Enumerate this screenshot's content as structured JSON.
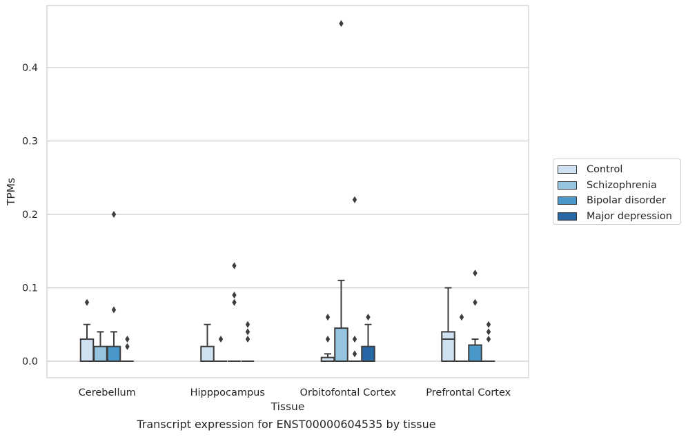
{
  "chart_data": {
    "type": "box",
    "xlabel": "Tissue",
    "ylabel": "TPMs",
    "ylim": [
      -0.023,
      0.485
    ],
    "yticks": [
      0.0,
      0.1,
      0.2,
      0.3,
      0.4
    ],
    "ytick_labels": [
      "0.0",
      "0.1",
      "0.2",
      "0.3",
      "0.4"
    ],
    "categories": [
      "Cerebellum",
      "Hipppocampus",
      "Orbitofontal Cortex",
      "Prefrontal Cortex"
    ],
    "grid": "horizontal",
    "legend_position": "right",
    "series": [
      {
        "name": "Control",
        "color": "#d0e1f2",
        "boxes": [
          {
            "whislo": 0.0,
            "q1": 0.0,
            "med": 0.0,
            "q3": 0.03,
            "whishi": 0.05,
            "fliers": [
              0.08
            ]
          },
          {
            "whislo": 0.0,
            "q1": 0.0,
            "med": 0.0,
            "q3": 0.02,
            "whishi": 0.05,
            "fliers": []
          },
          {
            "whislo": 0.0,
            "q1": 0.0,
            "med": 0.0,
            "q3": 0.005,
            "whishi": 0.01,
            "fliers": [
              0.03,
              0.06
            ]
          },
          {
            "whislo": 0.0,
            "q1": 0.0,
            "med": 0.03,
            "q3": 0.04,
            "whishi": 0.1,
            "fliers": []
          }
        ]
      },
      {
        "name": "Schizophrenia",
        "color": "#94c4df",
        "boxes": [
          {
            "whislo": 0.0,
            "q1": 0.0,
            "med": 0.0,
            "q3": 0.02,
            "whishi": 0.04,
            "fliers": []
          },
          {
            "whislo": 0.0,
            "q1": 0.0,
            "med": 0.0,
            "q3": 0.0,
            "whishi": 0.0,
            "fliers": [
              0.03
            ]
          },
          {
            "whislo": 0.0,
            "q1": 0.0,
            "med": 0.0,
            "q3": 0.045,
            "whishi": 0.11,
            "fliers": [
              0.46
            ]
          },
          {
            "whislo": 0.0,
            "q1": 0.0,
            "med": 0.0,
            "q3": 0.0,
            "whishi": 0.0,
            "fliers": [
              0.06
            ]
          }
        ]
      },
      {
        "name": "Bipolar disorder",
        "color": "#4a98c9",
        "boxes": [
          {
            "whislo": 0.0,
            "q1": 0.0,
            "med": 0.0,
            "q3": 0.02,
            "whishi": 0.04,
            "fliers": [
              0.07,
              0.2
            ]
          },
          {
            "whislo": 0.0,
            "q1": 0.0,
            "med": 0.0,
            "q3": 0.0,
            "whishi": 0.0,
            "fliers": [
              0.08,
              0.09,
              0.13
            ]
          },
          {
            "whislo": 0.0,
            "q1": 0.0,
            "med": 0.0,
            "q3": 0.0,
            "whishi": 0.0,
            "fliers": [
              0.01,
              0.03,
              0.22
            ]
          },
          {
            "whislo": 0.0,
            "q1": 0.0,
            "med": 0.0,
            "q3": 0.022,
            "whishi": 0.03,
            "fliers": [
              0.08,
              0.12
            ]
          }
        ]
      },
      {
        "name": "Major depression",
        "color": "#2767a6",
        "boxes": [
          {
            "whislo": 0.0,
            "q1": 0.0,
            "med": 0.0,
            "q3": 0.0,
            "whishi": 0.0,
            "fliers": [
              0.02,
              0.03
            ]
          },
          {
            "whislo": 0.0,
            "q1": 0.0,
            "med": 0.0,
            "q3": 0.0,
            "whishi": 0.0,
            "fliers": [
              0.03,
              0.04,
              0.05
            ]
          },
          {
            "whislo": 0.0,
            "q1": 0.0,
            "med": 0.0,
            "q3": 0.02,
            "whishi": 0.05,
            "fliers": [
              0.06
            ]
          },
          {
            "whislo": 0.0,
            "q1": 0.0,
            "med": 0.0,
            "q3": 0.0,
            "whishi": 0.0,
            "fliers": [
              0.03,
              0.04,
              0.05
            ]
          }
        ]
      }
    ]
  },
  "caption": "Transcript expression for ENST00000604535 by tissue"
}
